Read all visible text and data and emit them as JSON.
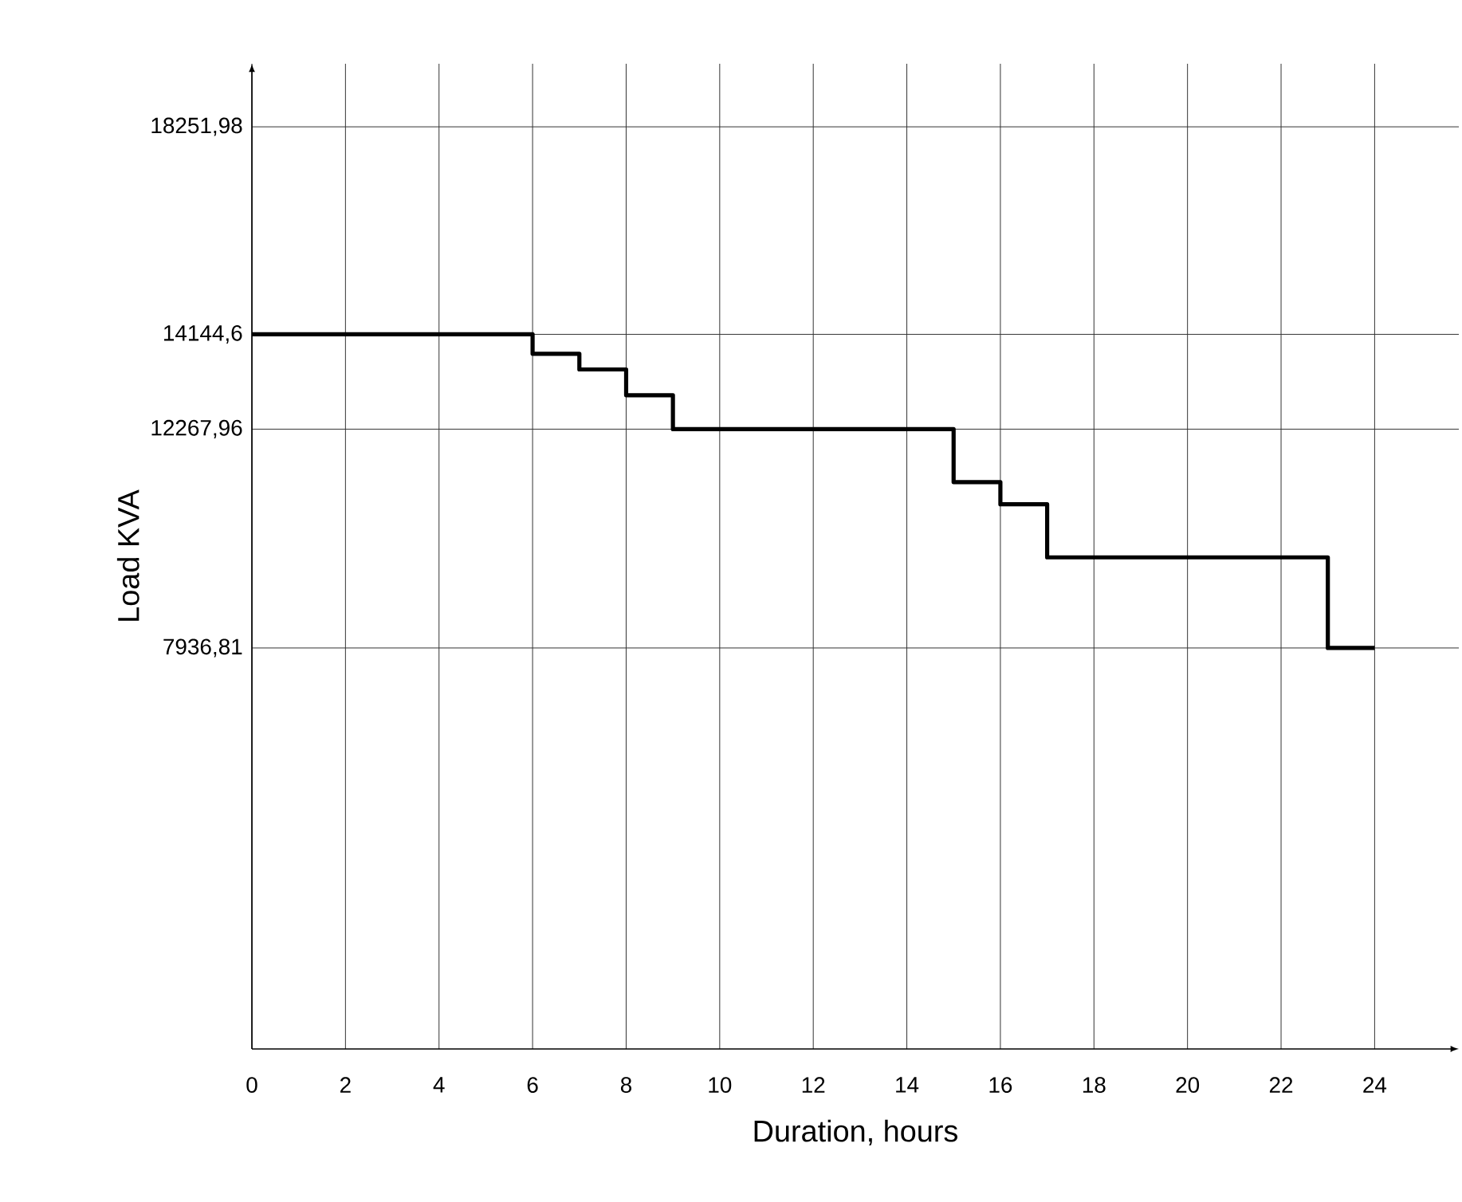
{
  "chart_data": {
    "type": "step",
    "xlabel": "Duration, hours",
    "ylabel": "Load KVA",
    "x": [
      0,
      6,
      7,
      8,
      9,
      15,
      16,
      17,
      23,
      24
    ],
    "values": [
      14144.6,
      13760,
      13450,
      12940,
      12267.96,
      11220,
      10780,
      9730,
      7936.81,
      7936.81
    ],
    "color": "#000000",
    "xlim": [
      0,
      25.8
    ],
    "ylim": [
      0,
      19500
    ],
    "xticks": [
      0,
      2,
      4,
      6,
      8,
      10,
      12,
      14,
      16,
      18,
      20,
      22,
      24
    ],
    "yticks": [
      {
        "value": 7936.81,
        "label": "7936,81"
      },
      {
        "value": 12267.96,
        "label": "12267,96"
      },
      {
        "value": 14144.6,
        "label": "14144,6"
      },
      {
        "value": 18251.98,
        "label": "18251,98"
      }
    ],
    "grid": true
  }
}
